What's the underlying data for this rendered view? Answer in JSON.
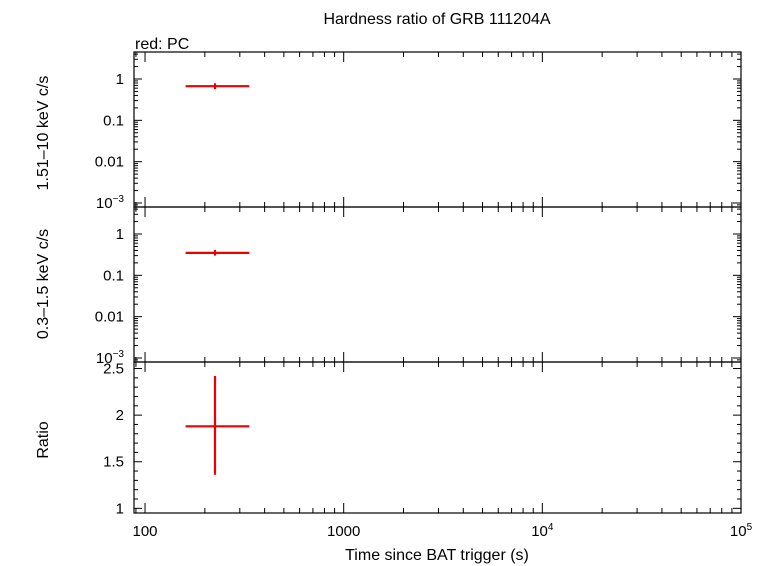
{
  "chart_data": {
    "type": "scatter",
    "title": "Hardness ratio of GRB 111204A",
    "legend_note": "red: PC",
    "xlabel": "Time since BAT trigger (s)",
    "x_scale": "log",
    "xlim": [
      88,
      100000
    ],
    "x_ticks": [
      {
        "value": 100,
        "base": "100",
        "sup": ""
      },
      {
        "value": 1000,
        "base": "1000",
        "sup": ""
      },
      {
        "value": 10000,
        "base": "10",
        "sup": "4"
      },
      {
        "value": 100000,
        "base": "10",
        "sup": "5"
      }
    ],
    "panels": [
      {
        "name": "hard-band",
        "ylabel": "1.51–10 keV c/s",
        "y_scale": "log",
        "ylim": [
          0.0008,
          4.5
        ],
        "y_ticks": [
          {
            "value": 1,
            "base": "1",
            "sup": ""
          },
          {
            "value": 0.1,
            "base": "0.1",
            "sup": ""
          },
          {
            "value": 0.01,
            "base": "0.01",
            "sup": ""
          },
          {
            "value": 0.001,
            "base": "10",
            "sup": "−3"
          }
        ],
        "points": [
          {
            "x": 225,
            "x_low": 160,
            "x_high": 335,
            "y": 0.67,
            "y_low": 0.57,
            "y_high": 0.79,
            "color": "#ee0000"
          }
        ]
      },
      {
        "name": "soft-band",
        "ylabel": "0.3–1.5 keV c/s",
        "y_scale": "log",
        "ylim": [
          0.0008,
          4.5
        ],
        "y_ticks": [
          {
            "value": 1,
            "base": "1",
            "sup": ""
          },
          {
            "value": 0.1,
            "base": "0.1",
            "sup": ""
          },
          {
            "value": 0.01,
            "base": "0.01",
            "sup": ""
          },
          {
            "value": 0.001,
            "base": "10",
            "sup": "−3"
          }
        ],
        "points": [
          {
            "x": 225,
            "x_low": 160,
            "x_high": 335,
            "y": 0.35,
            "y_low": 0.3,
            "y_high": 0.41,
            "color": "#ee0000"
          }
        ]
      },
      {
        "name": "ratio",
        "ylabel": "Ratio",
        "y_scale": "linear",
        "ylim": [
          0.95,
          2.57
        ],
        "y_ticks": [
          {
            "value": 2.5,
            "base": "2.5",
            "sup": ""
          },
          {
            "value": 2,
            "base": "2",
            "sup": ""
          },
          {
            "value": 1.5,
            "base": "1.5",
            "sup": ""
          },
          {
            "value": 1,
            "base": "1",
            "sup": ""
          }
        ],
        "points": [
          {
            "x": 225,
            "x_low": 160,
            "x_high": 335,
            "y": 1.88,
            "y_low": 1.36,
            "y_high": 2.42,
            "color": "#ee0000"
          }
        ]
      }
    ]
  }
}
